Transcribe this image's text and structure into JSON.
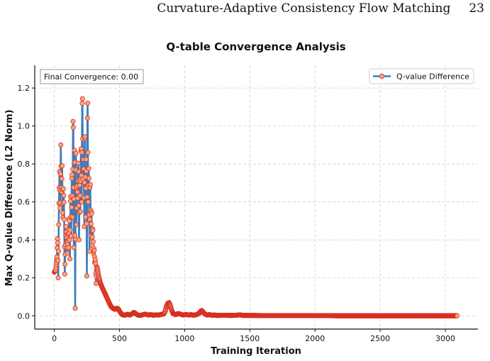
{
  "header": {
    "running_title": "Curvature-Adaptive Consistency Flow Matching",
    "page_number": "23"
  },
  "chart_data": {
    "type": "line",
    "title": "Q-table Convergence Analysis",
    "xlabel": "Training Iteration",
    "ylabel": "Max Q-value Difference (L2 Norm)",
    "xlim": [
      -150,
      3250
    ],
    "ylim": [
      -0.07,
      1.32
    ],
    "xticks": [
      0,
      500,
      1000,
      1500,
      2000,
      2500,
      3000
    ],
    "yticks": [
      0.0,
      0.2,
      0.4,
      0.6,
      0.8,
      1.0,
      1.2
    ],
    "ytick_labels": [
      "0.0",
      "0.2",
      "0.4",
      "0.6",
      "0.8",
      "1.0",
      "1.2"
    ],
    "grid": true,
    "legend_position": "top-right",
    "series": [
      {
        "name": "Q-value Difference",
        "line_color": "#3a7fc0",
        "marker_face": "#f4a582",
        "marker_edge": "#d7301f",
        "x_start": 0,
        "x_end": 3090,
        "points": [
          [
            0,
            0.23
          ],
          [
            10,
            0.24
          ],
          [
            20,
            0.31
          ],
          [
            25,
            0.43
          ],
          [
            30,
            0.2
          ],
          [
            35,
            0.55
          ],
          [
            40,
            0.76
          ],
          [
            45,
            0.52
          ],
          [
            50,
            0.9
          ],
          [
            55,
            0.62
          ],
          [
            60,
            0.79
          ],
          [
            65,
            0.48
          ],
          [
            70,
            0.67
          ],
          [
            75,
            0.58
          ],
          [
            80,
            0.22
          ],
          [
            85,
            0.35
          ],
          [
            90,
            0.47
          ],
          [
            95,
            0.4
          ],
          [
            100,
            0.33
          ],
          [
            105,
            0.45
          ],
          [
            110,
            0.36
          ],
          [
            115,
            0.55
          ],
          [
            120,
            0.3
          ],
          [
            125,
            0.68
          ],
          [
            130,
            0.42
          ],
          [
            135,
            0.8
          ],
          [
            140,
            0.52
          ],
          [
            145,
            1.15
          ],
          [
            150,
            0.36
          ],
          [
            155,
            1.0
          ],
          [
            160,
            0.04
          ],
          [
            165,
            0.95
          ],
          [
            170,
            0.48
          ],
          [
            175,
            0.7
          ],
          [
            180,
            0.62
          ],
          [
            185,
            0.85
          ],
          [
            190,
            0.4
          ],
          [
            195,
            0.76
          ],
          [
            200,
            0.55
          ],
          [
            205,
            0.95
          ],
          [
            210,
            0.6
          ],
          [
            215,
            1.25
          ],
          [
            220,
            0.72
          ],
          [
            225,
            0.85
          ],
          [
            230,
            0.47
          ],
          [
            235,
            1.05
          ],
          [
            240,
            0.52
          ],
          [
            245,
            0.9
          ],
          [
            250,
            0.21
          ],
          [
            255,
            1.25
          ],
          [
            260,
            0.6
          ],
          [
            265,
            0.82
          ],
          [
            270,
            0.34
          ],
          [
            275,
            0.76
          ],
          [
            280,
            0.42
          ],
          [
            285,
            0.58
          ],
          [
            290,
            0.37
          ],
          [
            295,
            0.48
          ],
          [
            300,
            0.33
          ],
          [
            305,
            0.36
          ],
          [
            310,
            0.28
          ],
          [
            315,
            0.3
          ],
          [
            320,
            0.17
          ],
          [
            325,
            0.26
          ],
          [
            330,
            0.25
          ],
          [
            340,
            0.21
          ],
          [
            350,
            0.18
          ],
          [
            360,
            0.16
          ],
          [
            370,
            0.145
          ],
          [
            380,
            0.13
          ],
          [
            390,
            0.115
          ],
          [
            400,
            0.1
          ],
          [
            410,
            0.085
          ],
          [
            420,
            0.07
          ],
          [
            430,
            0.055
          ],
          [
            440,
            0.045
          ],
          [
            450,
            0.04
          ],
          [
            460,
            0.035
          ],
          [
            470,
            0.035
          ],
          [
            480,
            0.04
          ],
          [
            490,
            0.037
          ],
          [
            500,
            0.025
          ],
          [
            510,
            0.015
          ],
          [
            520,
            0.006
          ],
          [
            540,
            0.003
          ],
          [
            560,
            0.008
          ],
          [
            580,
            0.004
          ],
          [
            600,
            0.012
          ],
          [
            610,
            0.018
          ],
          [
            620,
            0.014
          ],
          [
            640,
            0.004
          ],
          [
            660,
            0.002
          ],
          [
            680,
            0.006
          ],
          [
            700,
            0.009
          ],
          [
            720,
            0.004
          ],
          [
            740,
            0.006
          ],
          [
            760,
            0.003
          ],
          [
            780,
            0.005
          ],
          [
            800,
            0.004
          ],
          [
            820,
            0.007
          ],
          [
            840,
            0.01
          ],
          [
            850,
            0.022
          ],
          [
            860,
            0.048
          ],
          [
            870,
            0.065
          ],
          [
            880,
            0.07
          ],
          [
            890,
            0.055
          ],
          [
            900,
            0.03
          ],
          [
            910,
            0.012
          ],
          [
            930,
            0.006
          ],
          [
            950,
            0.012
          ],
          [
            970,
            0.008
          ],
          [
            990,
            0.004
          ],
          [
            1010,
            0.007
          ],
          [
            1030,
            0.004
          ],
          [
            1050,
            0.006
          ],
          [
            1070,
            0.003
          ],
          [
            1090,
            0.006
          ],
          [
            1110,
            0.012
          ],
          [
            1120,
            0.022
          ],
          [
            1130,
            0.028
          ],
          [
            1140,
            0.022
          ],
          [
            1150,
            0.012
          ],
          [
            1170,
            0.004
          ],
          [
            1190,
            0.006
          ],
          [
            1210,
            0.003
          ],
          [
            1230,
            0.004
          ],
          [
            1250,
            0.002
          ],
          [
            1300,
            0.003
          ],
          [
            1350,
            0.002
          ],
          [
            1400,
            0.003
          ],
          [
            1420,
            0.005
          ],
          [
            1450,
            0.002
          ],
          [
            1500,
            0.002
          ],
          [
            1600,
            0.001
          ],
          [
            1700,
            0.001
          ],
          [
            1800,
            0.001
          ],
          [
            1900,
            0.001
          ],
          [
            2000,
            0.001
          ],
          [
            2100,
            0.001
          ],
          [
            2200,
            0.0
          ],
          [
            2300,
            0.0
          ],
          [
            2400,
            0.0
          ],
          [
            2500,
            0.0
          ],
          [
            2600,
            0.0
          ],
          [
            2700,
            0.0
          ],
          [
            2800,
            0.0
          ],
          [
            2900,
            0.0
          ],
          [
            3000,
            0.0
          ],
          [
            3090,
            0.0
          ]
        ]
      }
    ],
    "annotation": "Final Convergence: 0.00"
  }
}
